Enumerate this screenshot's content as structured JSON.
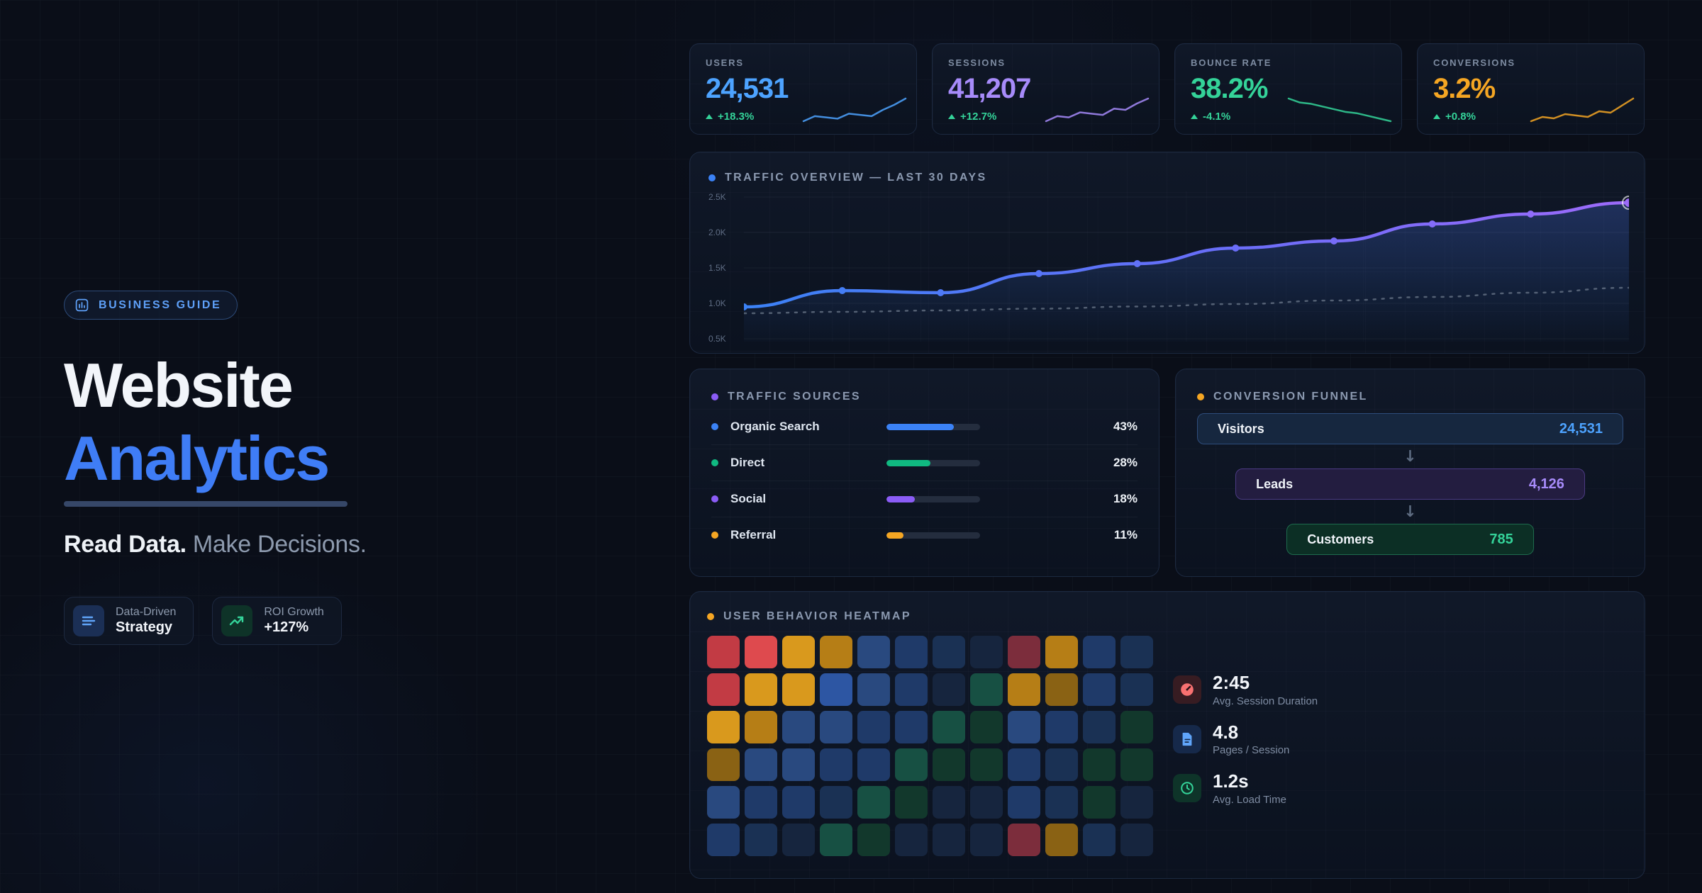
{
  "hero": {
    "badge_label": "BUSINESS GUIDE",
    "badge_icon": "bar-chart-icon",
    "heading_line1": "Website",
    "heading_line2": "Analytics",
    "tagline_strong": "Read Data.",
    "tagline_rest": " Make Decisions.",
    "chips": [
      {
        "icon": "list-icon",
        "icon_color": "#60a5fa",
        "icon_bg": "#1b2f55",
        "label": "Data-Driven",
        "value": "Strategy"
      },
      {
        "icon": "trending-up-icon",
        "icon_color": "#34d399",
        "icon_bg": "#0e3328",
        "label": "ROI Growth",
        "value": "+127%"
      }
    ]
  },
  "kpis": [
    {
      "label": "USERS",
      "value": "24,531",
      "change": "+18.3%",
      "change_dir": "up",
      "accent": "#4da3ff",
      "spark": [
        18,
        22,
        21,
        20,
        24,
        23,
        22,
        27,
        31,
        36
      ]
    },
    {
      "label": "SESSIONS",
      "value": "41,207",
      "change": "+12.7%",
      "change_dir": "up",
      "accent": "#a78bfa",
      "spark": [
        16,
        20,
        19,
        23,
        22,
        21,
        26,
        25,
        30,
        34
      ]
    },
    {
      "label": "BOUNCE RATE",
      "value": "38.2%",
      "change": "-4.1%",
      "change_dir": "up",
      "accent": "#34d399",
      "spark": [
        34,
        31,
        30,
        28,
        26,
        24,
        23,
        21,
        19,
        17
      ]
    },
    {
      "label": "CONVERSIONS",
      "value": "3.2%",
      "change": "+0.8%",
      "change_dir": "up",
      "accent": "#f5a623",
      "spark": [
        14,
        17,
        16,
        19,
        18,
        17,
        21,
        20,
        25,
        30
      ]
    }
  ],
  "change_color": "#34d399",
  "cards": {
    "overview_title": "TRAFFIC OVERVIEW — LAST 30 DAYS",
    "overview_dot": "#3b82f6",
    "sources_title": "TRAFFIC SOURCES",
    "sources_dot": "#8b5cf6",
    "funnel_title": "CONVERSION FUNNEL",
    "funnel_dot": "#f5a623",
    "heatmap_title": "USER BEHAVIOR HEATMAP",
    "heatmap_dot": "#f5a623"
  },
  "chart_data": [
    {
      "type": "line",
      "title": "TRAFFIC OVERVIEW — LAST 30 DAYS",
      "series": [
        {
          "name": "current",
          "style": "solid",
          "markers": true,
          "color_start": "#3b82f6",
          "color_end": "#9d6bfa",
          "values": [
            950,
            1180,
            1150,
            1420,
            1560,
            1780,
            1880,
            2120,
            2260,
            2420
          ]
        },
        {
          "name": "previous",
          "style": "dashed",
          "markers": false,
          "color": "#8b97a8",
          "values": [
            860,
            880,
            900,
            925,
            955,
            990,
            1040,
            1090,
            1150,
            1220
          ]
        }
      ],
      "yticks": [
        {
          "value": 2500,
          "label": "2.5K"
        },
        {
          "value": 2000,
          "label": "2.0K"
        },
        {
          "value": 1500,
          "label": "1.5K"
        },
        {
          "value": 1000,
          "label": "1.0K"
        },
        {
          "value": 500,
          "label": "0.5K"
        }
      ],
      "ylim": [
        450,
        2600
      ],
      "grid": "horizontal",
      "area_fill": true,
      "legend": "none"
    },
    {
      "type": "bar",
      "title": "TRAFFIC SOURCES",
      "categories": [
        "Organic Search",
        "Direct",
        "Social",
        "Referral"
      ],
      "values": [
        43,
        28,
        18,
        11
      ],
      "unit": "%",
      "labels": [
        "43%",
        "28%",
        "18%",
        "11%"
      ],
      "colors": [
        "#3b82f6",
        "#10b981",
        "#8b5cf6",
        "#f5a623"
      ],
      "bar_fill_pct": [
        72,
        47,
        30,
        18
      ]
    },
    {
      "type": "funnel",
      "title": "CONVERSION FUNNEL",
      "arrow_glyph": "↓",
      "stages": [
        {
          "label": "Visitors",
          "value": "24,531",
          "width_pct": 100,
          "bg": "#16273f",
          "border": "#2e4d7c",
          "value_color": "#4da3ff"
        },
        {
          "label": "Leads",
          "value": "4,126",
          "width_pct": 82,
          "bg": "#231d40",
          "border": "#4b3a82",
          "value_color": "#a78bfa"
        },
        {
          "label": "Customers",
          "value": "785",
          "width_pct": 58,
          "bg": "#0c2f25",
          "border": "#1e6b4d",
          "value_color": "#34d399"
        }
      ]
    },
    {
      "type": "heatmap",
      "title": "USER BEHAVIOR HEATMAP",
      "rows": 6,
      "cols": 12,
      "palette": {
        "r2": "#de4a4e",
        "r1": "#c23b44",
        "m": "#7c2d3c",
        "a2": "#d9991d",
        "a1": "#b67e16",
        "br": "#8a6214",
        "b3": "#2d56a3",
        "b2": "#29497f",
        "b1": "#1f3a69",
        "n2": "#1a3154",
        "n1": "#16253e",
        "t2": "#175043",
        "t1": "#12382c"
      },
      "cells": [
        [
          "r1",
          "r2",
          "a2",
          "a1",
          "b2",
          "b1",
          "n2",
          "n1",
          "m",
          "a1",
          "b1",
          "n2"
        ],
        [
          "r1",
          "a2",
          "a2",
          "b3",
          "b2",
          "b1",
          "n1",
          "t2",
          "a1",
          "br",
          "b1",
          "n2"
        ],
        [
          "a2",
          "a1",
          "b2",
          "b2",
          "b1",
          "b1",
          "t2",
          "t1",
          "b2",
          "b1",
          "n2",
          "t1"
        ],
        [
          "br",
          "b2",
          "b2",
          "b1",
          "b1",
          "t2",
          "t1",
          "t1",
          "b1",
          "n2",
          "t1",
          "t1"
        ],
        [
          "b2",
          "b1",
          "b1",
          "n2",
          "t2",
          "t1",
          "n1",
          "n1",
          "b1",
          "n2",
          "t1",
          "n1"
        ],
        [
          "b1",
          "n2",
          "n1",
          "t2",
          "t1",
          "n1",
          "n1",
          "n1",
          "m",
          "br",
          "n2",
          "n1"
        ]
      ]
    }
  ],
  "behavior_stats": {
    "items": [
      {
        "icon": "gauge-icon",
        "color": "#f87171",
        "bg": "#371c22",
        "value": "2:45",
        "label": "Avg. Session Duration"
      },
      {
        "icon": "document-icon",
        "color": "#60a5fa",
        "bg": "#16294a",
        "value": "4.8",
        "label": "Pages / Session"
      },
      {
        "icon": "clock-icon",
        "color": "#34d399",
        "bg": "#0e3429",
        "value": "1.2s",
        "label": "Avg. Load Time"
      }
    ]
  }
}
